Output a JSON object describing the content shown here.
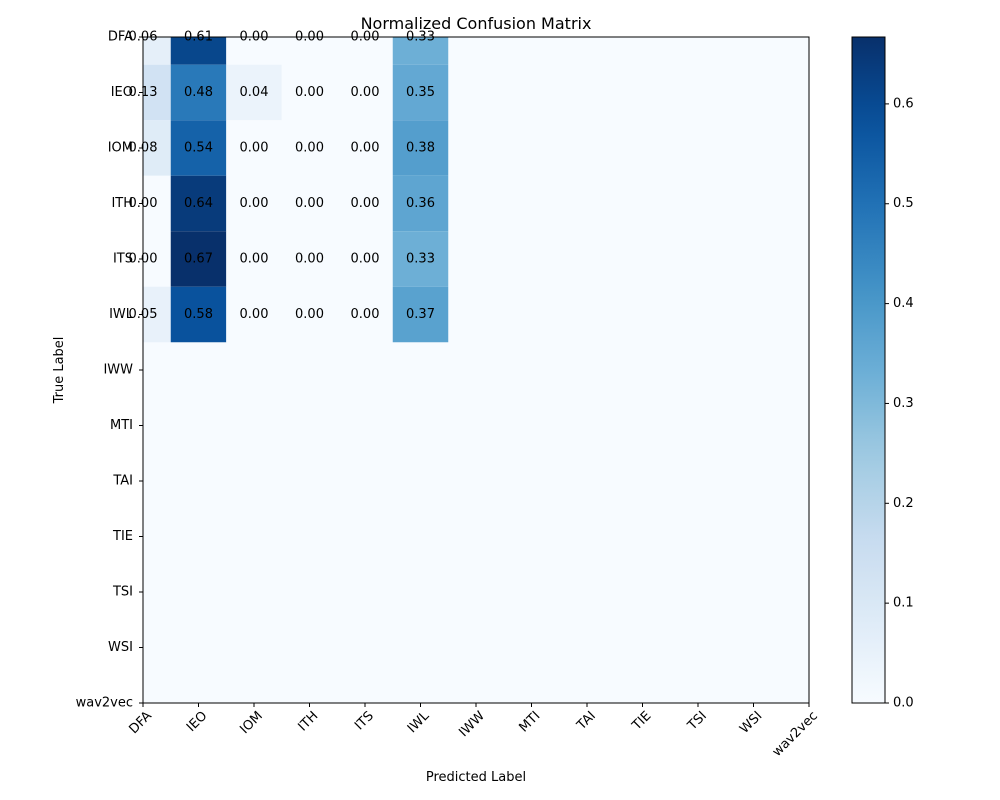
{
  "chart_data": {
    "type": "heatmap",
    "title": "Normalized Confusion Matrix",
    "xlabel": "Predicted Label",
    "ylabel": "True Label",
    "x_categories": [
      "DFA",
      "IEO",
      "IOM",
      "ITH",
      "ITS",
      "IWL",
      "IWW",
      "MTI",
      "TAI",
      "TIE",
      "TSI",
      "WSI",
      "wav2vec"
    ],
    "y_categories": [
      "DFA",
      "IEO",
      "IOM",
      "ITH",
      "ITS",
      "IWL",
      "IWW",
      "MTI",
      "TAI",
      "TIE",
      "TSI",
      "WSI",
      "wav2vec"
    ],
    "matrix_rows": [
      "DFA",
      "IEO",
      "IOM",
      "ITH",
      "ITS",
      "IWL"
    ],
    "matrix_cols": [
      "DFA",
      "IEO",
      "IOM",
      "ITH",
      "ITS",
      "IWL"
    ],
    "values": [
      [
        0.06,
        0.61,
        0.0,
        0.0,
        0.0,
        0.33
      ],
      [
        0.13,
        0.48,
        0.04,
        0.0,
        0.0,
        0.35
      ],
      [
        0.08,
        0.54,
        0.0,
        0.0,
        0.0,
        0.38
      ],
      [
        0.0,
        0.64,
        0.0,
        0.0,
        0.0,
        0.36
      ],
      [
        0.0,
        0.67,
        0.0,
        0.0,
        0.0,
        0.33
      ],
      [
        0.05,
        0.58,
        0.0,
        0.0,
        0.0,
        0.37
      ]
    ],
    "colormap": "Blues",
    "colorbar": {
      "range": [
        0.0,
        0.667
      ],
      "ticks": [
        0.0,
        0.1,
        0.2,
        0.3,
        0.4,
        0.5,
        0.6
      ],
      "tick_labels": [
        "0.0",
        "0.1",
        "0.2",
        "0.3",
        "0.4",
        "0.5",
        "0.6"
      ]
    }
  }
}
